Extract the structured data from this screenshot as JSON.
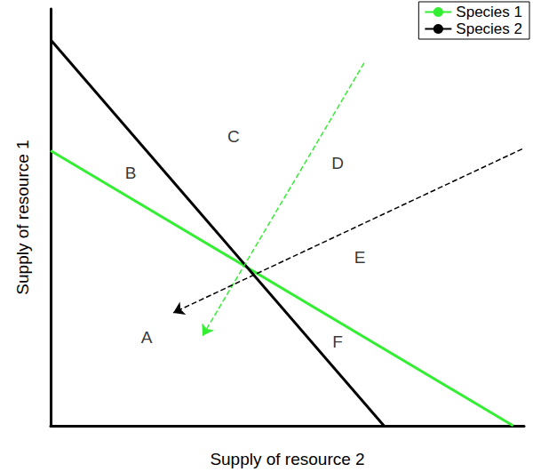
{
  "chart_data": {
    "type": "line",
    "x_label": "Supply of resource 2",
    "y_label": "Supply of resource 1",
    "xlim": [
      0,
      100
    ],
    "ylim": [
      0,
      100
    ],
    "tick_labels": false,
    "grid": false,
    "legend": "upper right",
    "series": [
      {
        "name": "Species 1",
        "color": "#33ee33",
        "line_style": "solid",
        "x": [
          0,
          97.7
        ],
        "values": [
          66.0,
          0
        ]
      },
      {
        "name": "Species 2",
        "color": "#000000",
        "line_style": "solid",
        "x": [
          0,
          70.4
        ],
        "values": [
          92.6,
          0
        ]
      }
    ],
    "vectors": [
      {
        "color": "#33ee33",
        "line_style": "dashed",
        "marker": "arrow",
        "x": [
          66.2,
          32.1
        ],
        "values": [
          87.0,
          21.6
        ]
      },
      {
        "color": "#000000",
        "line_style": "dashed",
        "marker": "arrow",
        "x": [
          99.6,
          25.9
        ],
        "values": [
          66.4,
          27.1
        ]
      }
    ],
    "annotations": [
      {
        "text": "A",
        "x": 20.3,
        "y": 21.2
      },
      {
        "text": "B",
        "x": 16.9,
        "y": 60.7
      },
      {
        "text": "C",
        "x": 38.6,
        "y": 69.5
      },
      {
        "text": "D",
        "x": 60.6,
        "y": 63.0
      },
      {
        "text": "E",
        "x": 65.3,
        "y": 40.5
      },
      {
        "text": "F",
        "x": 60.6,
        "y": 20.2
      }
    ]
  }
}
